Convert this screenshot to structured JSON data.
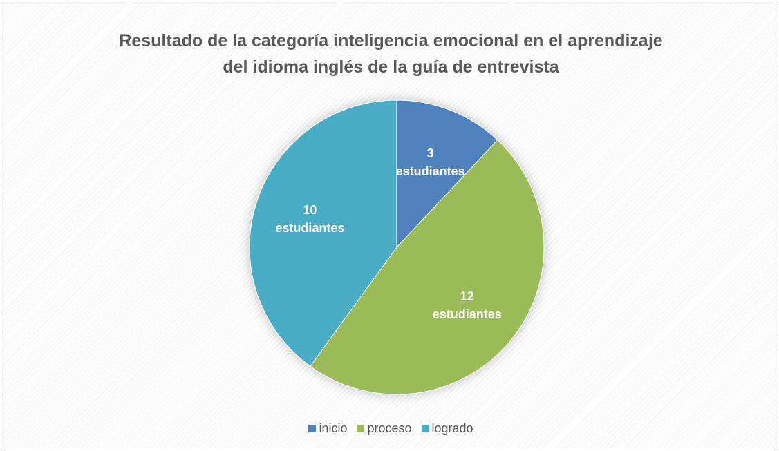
{
  "chart_data": {
    "type": "pie",
    "title": "Resultado de la categoría inteligencia emocional en el aprendizaje del idioma inglés de la guía de entrevista",
    "categories": [
      "inicio",
      "proceso",
      "logrado"
    ],
    "values": [
      3,
      12,
      10
    ],
    "value_labels": [
      "3 estudiantes",
      "12 estudiantes",
      "10 estudiantes"
    ],
    "colors": [
      "#4f81bd",
      "#9bbb59",
      "#4bacc6"
    ],
    "legend": "bottom"
  }
}
